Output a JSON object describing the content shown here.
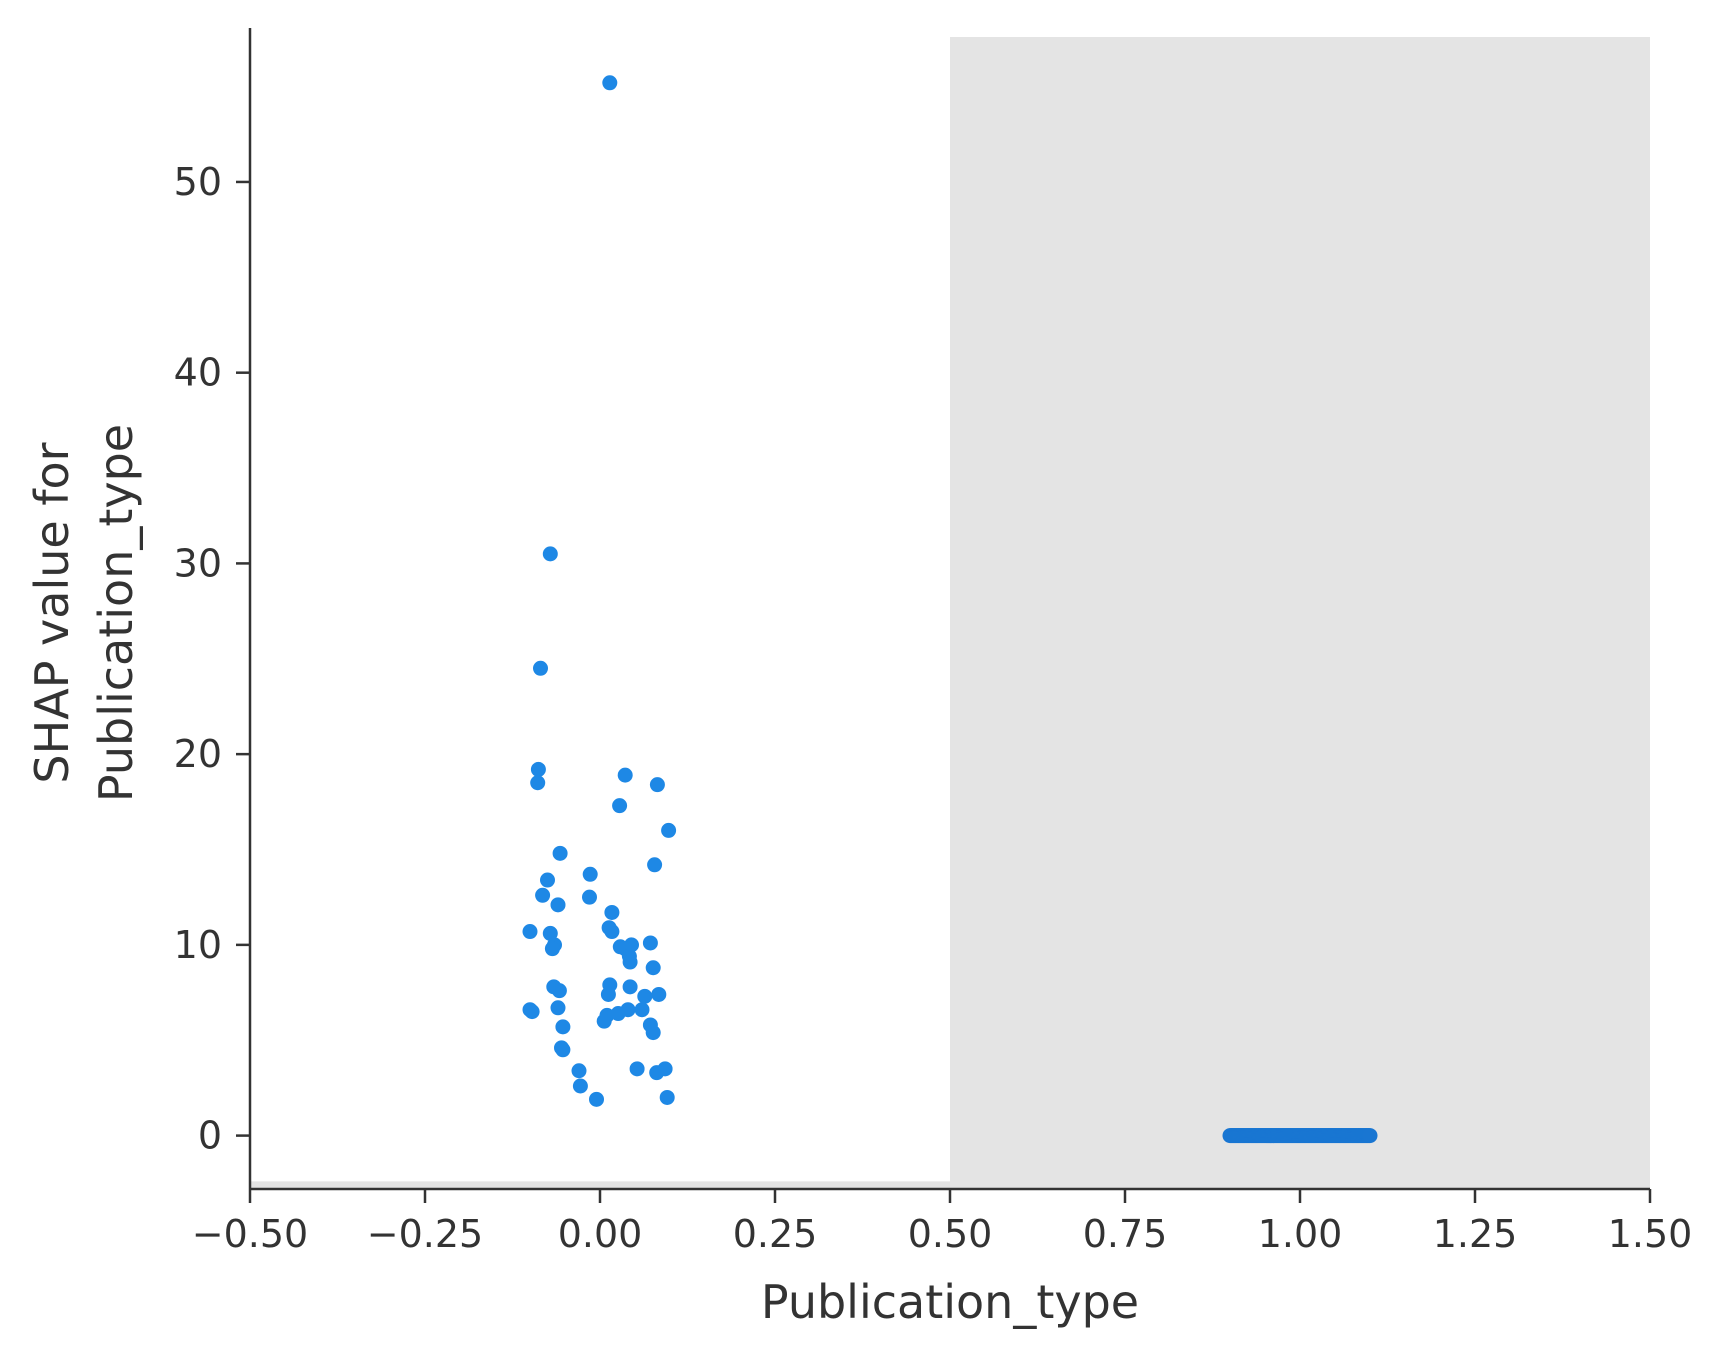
{
  "chart_data": {
    "type": "scatter",
    "title": "",
    "xlabel": "Publication_type",
    "ylabel_lines": [
      "SHAP value for",
      "Publication_type"
    ],
    "xlim": [
      -0.5,
      1.5
    ],
    "ylim": [
      -2.8,
      57.6
    ],
    "xticks": [
      -0.5,
      -0.25,
      0.0,
      0.25,
      0.5,
      0.75,
      1.0,
      1.25,
      1.5
    ],
    "xtick_labels": [
      "−0.50",
      "−0.25",
      "0.00",
      "0.25",
      "0.50",
      "0.75",
      "1.00",
      "1.25",
      "1.50"
    ],
    "yticks": [
      0,
      10,
      20,
      30,
      40,
      50
    ],
    "ytick_labels": [
      "0",
      "10",
      "20",
      "30",
      "40",
      "50"
    ],
    "grid": false,
    "colors": {
      "point": "#1e88e5",
      "dense_point": "#1976d2",
      "shade": "#e4e4e4",
      "axis": "#333333"
    },
    "shaded_regions": [
      {
        "x0": 0.5,
        "x1": 1.5,
        "y0": -2.8,
        "y1": 57.6
      },
      {
        "x0": -0.5,
        "x1": 0.5,
        "y0": -2.8,
        "y1": -2.4
      }
    ],
    "series": [
      {
        "points": [
          [
            0.014,
            55.2
          ],
          [
            -0.071,
            30.5
          ],
          [
            -0.085,
            24.5
          ],
          [
            -0.088,
            19.2
          ],
          [
            -0.089,
            18.5
          ],
          [
            0.036,
            18.9
          ],
          [
            0.082,
            18.4
          ],
          [
            0.028,
            17.3
          ],
          [
            0.098,
            16.0
          ],
          [
            -0.057,
            14.8
          ],
          [
            0.078,
            14.2
          ],
          [
            -0.014,
            13.7
          ],
          [
            -0.075,
            13.4
          ],
          [
            -0.082,
            12.6
          ],
          [
            -0.015,
            12.5
          ],
          [
            -0.06,
            12.1
          ],
          [
            0.017,
            11.7
          ],
          [
            -0.1,
            10.7
          ],
          [
            -0.071,
            10.6
          ],
          [
            0.013,
            10.9
          ],
          [
            0.017,
            10.7
          ],
          [
            -0.065,
            10.0
          ],
          [
            -0.068,
            9.8
          ],
          [
            0.029,
            9.9
          ],
          [
            0.036,
            9.8
          ],
          [
            0.045,
            10.0
          ],
          [
            0.042,
            9.4
          ],
          [
            0.043,
            9.1
          ],
          [
            0.072,
            10.1
          ],
          [
            0.076,
            8.8
          ],
          [
            -0.066,
            7.8
          ],
          [
            -0.058,
            7.6
          ],
          [
            0.014,
            7.9
          ],
          [
            0.043,
            7.8
          ],
          [
            0.012,
            7.4
          ],
          [
            0.064,
            7.3
          ],
          [
            0.084,
            7.4
          ],
          [
            -0.06,
            6.7
          ],
          [
            -0.1,
            6.6
          ],
          [
            -0.097,
            6.5
          ],
          [
            0.01,
            6.3
          ],
          [
            0.026,
            6.4
          ],
          [
            0.04,
            6.6
          ],
          [
            0.06,
            6.6
          ],
          [
            0.006,
            6.0
          ],
          [
            0.072,
            5.8
          ],
          [
            0.076,
            5.4
          ],
          [
            -0.053,
            5.7
          ],
          [
            -0.055,
            4.6
          ],
          [
            -0.053,
            4.5
          ],
          [
            -0.03,
            3.4
          ],
          [
            0.053,
            3.5
          ],
          [
            0.093,
            3.5
          ],
          [
            0.081,
            3.3
          ],
          [
            -0.028,
            2.6
          ],
          [
            -0.005,
            1.9
          ],
          [
            0.096,
            2.0
          ]
        ]
      },
      {
        "points_band": {
          "x_from": 0.9,
          "x_to": 1.1,
          "y": 0.0,
          "count": 140
        }
      }
    ]
  }
}
